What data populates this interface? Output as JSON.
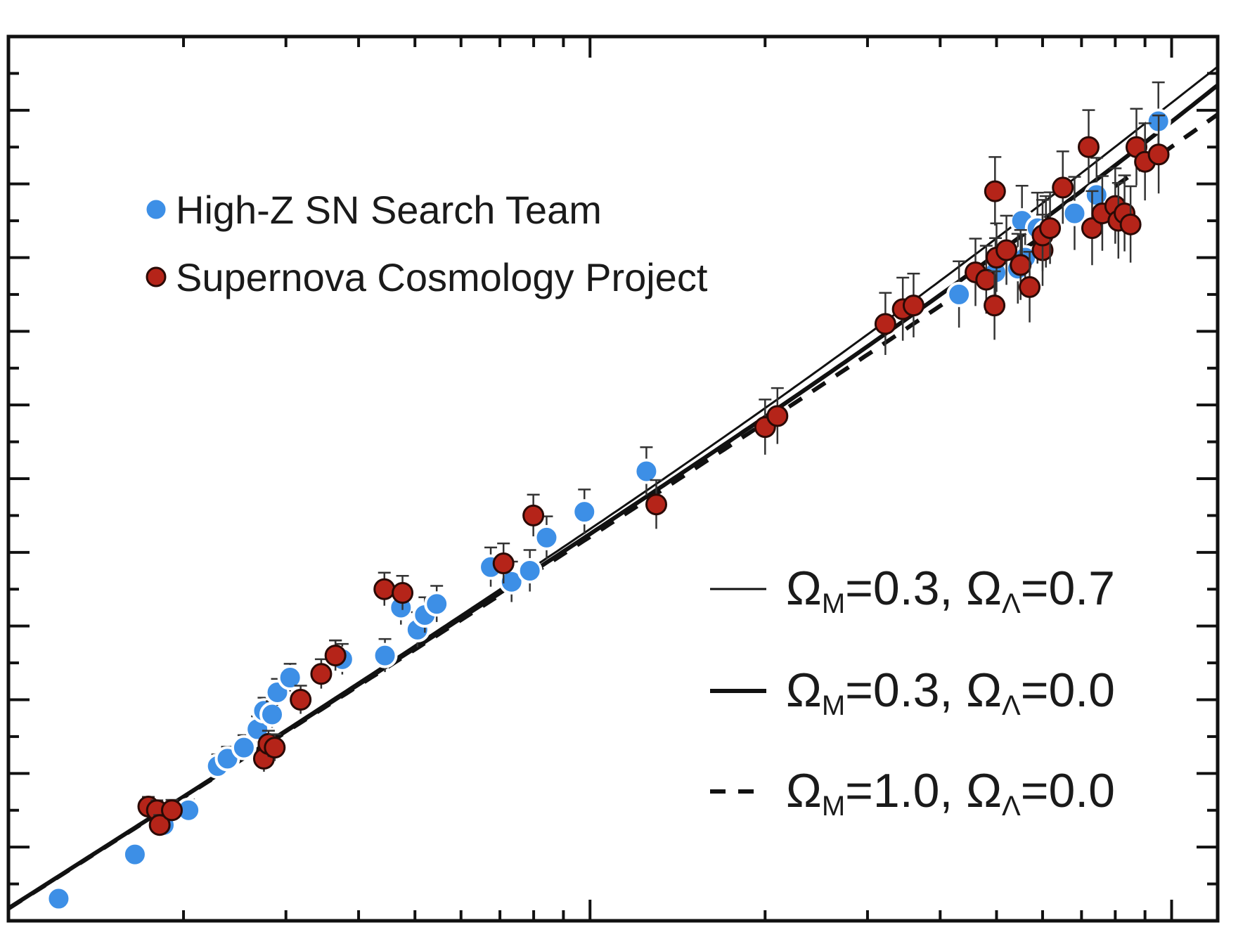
{
  "chart_data": {
    "type": "scatter",
    "title": "",
    "xlabel": "",
    "ylabel": "",
    "xscale": "log",
    "xlim": [
      0.01,
      1.2
    ],
    "ylim": [
      33,
      45
    ],
    "x_major_ticks": [
      0.1,
      1.0
    ],
    "grid": false,
    "legend_placement": "top-left",
    "series": [
      {
        "name": "High-Z SN Search Team",
        "color": "#3d8fe6",
        "marker": "circle",
        "points": [
          [
            0.0122,
            33.3
          ],
          [
            0.0165,
            33.9
          ],
          [
            0.0185,
            34.3
          ],
          [
            0.0204,
            34.5
          ],
          [
            0.0229,
            35.1
          ],
          [
            0.0238,
            35.2
          ],
          [
            0.0254,
            35.35
          ],
          [
            0.0268,
            35.6
          ],
          [
            0.0275,
            35.85
          ],
          [
            0.0284,
            35.8
          ],
          [
            0.029,
            36.1
          ],
          [
            0.0305,
            36.3
          ],
          [
            0.0365,
            36.6
          ],
          [
            0.0375,
            36.55
          ],
          [
            0.0444,
            36.6
          ],
          [
            0.0473,
            37.25
          ],
          [
            0.0505,
            36.95
          ],
          [
            0.052,
            37.15
          ],
          [
            0.0545,
            37.3
          ],
          [
            0.0675,
            37.8
          ],
          [
            0.0733,
            37.6
          ],
          [
            0.0788,
            37.75
          ],
          [
            0.0842,
            38.2
          ],
          [
            0.0978,
            38.55
          ],
          [
            0.125,
            39.1
          ],
          [
            0.431,
            41.5
          ],
          [
            0.498,
            41.8
          ],
          [
            0.544,
            41.85
          ],
          [
            0.56,
            42.0
          ],
          [
            0.553,
            42.5
          ],
          [
            0.588,
            42.4
          ],
          [
            0.608,
            42.35
          ],
          [
            0.681,
            42.6
          ],
          [
            0.743,
            42.85
          ],
          [
            0.949,
            43.85
          ]
        ]
      },
      {
        "name": "Supernova Cosmology Project",
        "color": "#b52419",
        "marker": "circle",
        "points": [
          [
            0.0174,
            34.55
          ],
          [
            0.018,
            34.5
          ],
          [
            0.0182,
            34.3
          ],
          [
            0.0191,
            34.5
          ],
          [
            0.0275,
            35.2
          ],
          [
            0.028,
            35.4
          ],
          [
            0.0287,
            35.35
          ],
          [
            0.0318,
            36.0
          ],
          [
            0.0345,
            36.35
          ],
          [
            0.0365,
            36.6
          ],
          [
            0.0443,
            37.5
          ],
          [
            0.0476,
            37.45
          ],
          [
            0.071,
            37.85
          ],
          [
            0.0799,
            38.5
          ],
          [
            0.13,
            38.65
          ],
          [
            0.2,
            39.7
          ],
          [
            0.21,
            39.85
          ],
          [
            0.322,
            41.1
          ],
          [
            0.345,
            41.3
          ],
          [
            0.36,
            41.35
          ],
          [
            0.46,
            41.8
          ],
          [
            0.48,
            41.7
          ],
          [
            0.496,
            41.35
          ],
          [
            0.497,
            42.9
          ],
          [
            0.5,
            42.0
          ],
          [
            0.52,
            42.1
          ],
          [
            0.55,
            41.9
          ],
          [
            0.57,
            41.6
          ],
          [
            0.6,
            42.1
          ],
          [
            0.6,
            42.3
          ],
          [
            0.618,
            42.4
          ],
          [
            0.65,
            42.95
          ],
          [
            0.72,
            43.5
          ],
          [
            0.73,
            42.4
          ],
          [
            0.76,
            42.6
          ],
          [
            0.8,
            42.7
          ],
          [
            0.81,
            42.5
          ],
          [
            0.83,
            42.6
          ],
          [
            0.85,
            42.45
          ],
          [
            0.87,
            43.5
          ],
          [
            0.9,
            43.3
          ],
          [
            0.95,
            43.4
          ]
        ]
      }
    ],
    "models": [
      {
        "om": "0.3",
        "ol": "0.7",
        "style": "thin-solid"
      },
      {
        "om": "0.3",
        "ol": "0.0",
        "style": "thick-solid"
      },
      {
        "om": "1.0",
        "ol": "0.0",
        "style": "dashed"
      }
    ]
  }
}
